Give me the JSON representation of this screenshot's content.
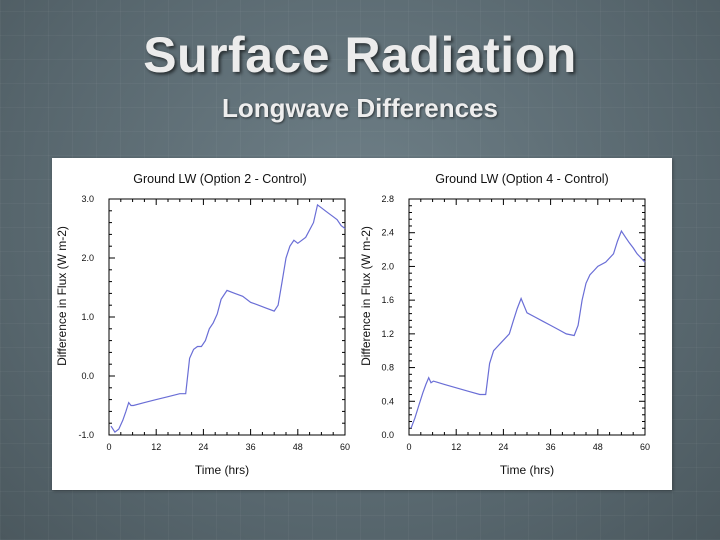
{
  "slide": {
    "title": "Surface Radiation",
    "subtitle": "Longwave Differences"
  },
  "chart_data": [
    {
      "type": "line",
      "title": "Ground LW (Option 2 - Control)",
      "xlabel": "Time (hrs)",
      "ylabel": "Difference in Flux (W m-2)",
      "xlim": [
        0,
        60
      ],
      "ylim": [
        -1.0,
        3.0
      ],
      "xticks": [
        0,
        12,
        24,
        36,
        48,
        60
      ],
      "xtick_labels": [
        "0",
        "12",
        "24",
        "36",
        "48",
        "60"
      ],
      "yticks": [
        -1.0,
        0.0,
        1.0,
        2.0,
        3.0
      ],
      "ytick_labels": [
        "-1.0",
        "0.0",
        "1.0",
        "2.0",
        "3.0"
      ],
      "color": "#6a6ed6",
      "series": [
        {
          "name": "Option 2 - Control",
          "x": [
            0.5,
            1.5,
            2.5,
            3.5,
            4.3,
            5.0,
            5.6,
            6.2,
            9,
            12,
            15,
            18,
            19.5,
            20.5,
            21.5,
            22.5,
            23.5,
            24.5,
            25.5,
            26.5,
            27.5,
            28.5,
            30,
            32,
            34,
            36,
            38,
            40,
            42,
            43,
            44,
            45,
            46,
            47,
            48,
            50,
            52,
            53,
            54,
            55,
            56,
            57,
            58,
            59,
            60
          ],
          "y": [
            -0.85,
            -0.95,
            -0.9,
            -0.75,
            -0.6,
            -0.45,
            -0.5,
            -0.5,
            -0.45,
            -0.4,
            -0.35,
            -0.3,
            -0.3,
            0.3,
            0.45,
            0.5,
            0.5,
            0.6,
            0.8,
            0.9,
            1.05,
            1.3,
            1.45,
            1.4,
            1.35,
            1.25,
            1.2,
            1.15,
            1.1,
            1.2,
            1.6,
            2.0,
            2.2,
            2.3,
            2.25,
            2.35,
            2.6,
            2.9,
            2.85,
            2.8,
            2.75,
            2.7,
            2.65,
            2.55,
            2.5
          ]
        }
      ]
    },
    {
      "type": "line",
      "title": "Ground LW (Option 4 - Control)",
      "xlabel": "Time (hrs)",
      "ylabel": "Difference in Flux (W m-2)",
      "xlim": [
        0,
        60
      ],
      "ylim": [
        0.0,
        2.8
      ],
      "xticks": [
        0,
        12,
        24,
        36,
        48,
        60
      ],
      "xtick_labels": [
        "0",
        "12",
        "24",
        "36",
        "48",
        "60"
      ],
      "yticks": [
        0.0,
        0.4,
        0.8,
        1.2,
        1.6,
        2.0,
        2.4,
        2.8
      ],
      "ytick_labels": [
        "0.0",
        "0.4",
        "0.8",
        "1.2",
        "1.6",
        "2.0",
        "2.4",
        "2.8"
      ],
      "color": "#6a6ed6",
      "series": [
        {
          "name": "Option 4 - Control",
          "x": [
            0.5,
            1.5,
            2.5,
            3.5,
            4.3,
            5.0,
            5.6,
            6.2,
            9,
            12,
            15,
            18,
            19.5,
            20.5,
            21.5,
            22.5,
            23.5,
            24.5,
            25.5,
            26.5,
            27.5,
            28.5,
            30,
            32,
            34,
            36,
            38,
            40,
            42,
            43,
            44,
            45,
            46,
            47,
            48,
            50,
            52,
            53,
            54,
            55,
            56,
            57,
            58,
            59,
            60
          ],
          "y": [
            0.08,
            0.2,
            0.35,
            0.5,
            0.6,
            0.68,
            0.62,
            0.64,
            0.6,
            0.56,
            0.52,
            0.48,
            0.48,
            0.85,
            1.0,
            1.05,
            1.1,
            1.15,
            1.2,
            1.35,
            1.5,
            1.62,
            1.45,
            1.4,
            1.35,
            1.3,
            1.25,
            1.2,
            1.18,
            1.3,
            1.6,
            1.8,
            1.9,
            1.95,
            2.0,
            2.05,
            2.15,
            2.3,
            2.42,
            2.35,
            2.28,
            2.22,
            2.15,
            2.1,
            2.05
          ]
        }
      ]
    }
  ]
}
